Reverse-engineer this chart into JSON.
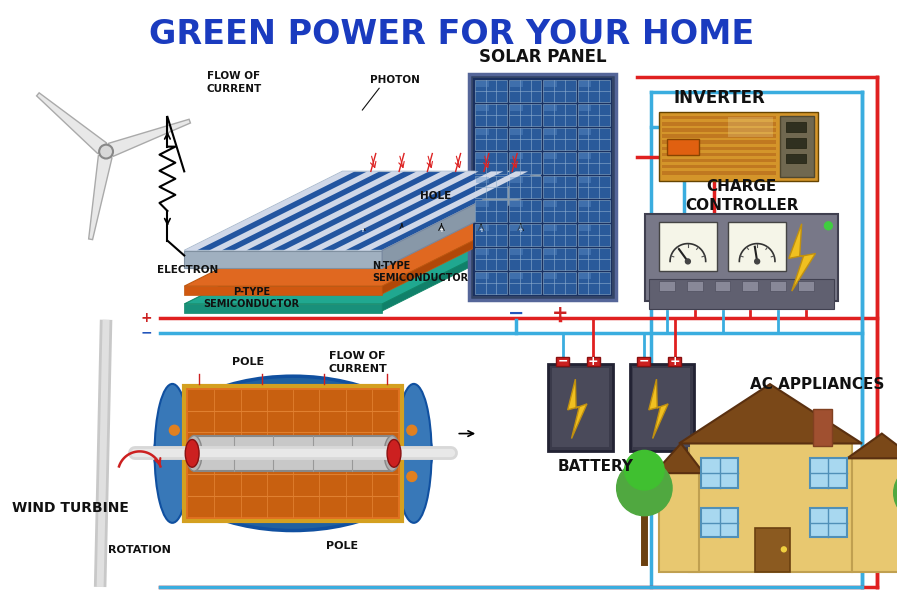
{
  "title": "GREEN POWER FOR YOUR HOME",
  "title_color": "#1a3bbf",
  "title_fontsize": 24,
  "bg_color": "#ffffff",
  "wire_red": "#e02020",
  "wire_blue": "#3aaddf",
  "labels": {
    "solar_panel": "SOLAR PANEL",
    "inverter": "INVERTER",
    "charge_controller": "CHARGE\nCONTROLLER",
    "battery": "BATTERY",
    "ac_appliances": "AC APPLIANCES",
    "wind_turbine": "WIND TURBINE",
    "photon": "PHOTON",
    "electron": "ELECTRON",
    "hole": "HOLE",
    "n_type": "N-TYPE\nSEMICONDUCTOR",
    "p_type": "P-TYPE\nSEMICONDUCTOR",
    "flow_current_top": "FLOW OF\nCURRENT",
    "pole_top": "POLE",
    "pole_bottom": "POLE",
    "flow_current_gen": "FLOW OF\nCURRENT",
    "rotation": "ROTATION",
    "plus": "+",
    "minus": "-"
  },
  "colors": {
    "solar_blue": "#2255a0",
    "solar_dark_blue": "#1a3a70",
    "solar_white": "#d0d8e8",
    "solar_frame_gray": "#c0c8d0",
    "inverter_body": "#d4952a",
    "inverter_stripe": "#c07820",
    "inverter_orange_box": "#e06010",
    "charge_body": "#7a7a8a",
    "charge_dark": "#606070",
    "wire_red": "#e02020",
    "wire_blue": "#3aaddf",
    "battery_dark": "#3a3a4a",
    "battery_mid": "#4a4a5a",
    "battery_symbol": "#f0c000",
    "turbine_blue": "#2060a0",
    "turbine_blue2": "#3070b0",
    "turbine_yellow": "#d4a020",
    "turbine_orange": "#e07020",
    "turbine_gray": "#aaaaaa",
    "turbine_silver": "#cccccc",
    "label_black": "#111111",
    "plus_red": "#cc2222",
    "minus_blue": "#2255bb",
    "solar_cell_blue": "#2a5a9a",
    "solar_cell_light": "#5080c0",
    "orange_layer": "#e06820",
    "teal_layer": "#20a890",
    "panel_bg": "#1a3060"
  }
}
